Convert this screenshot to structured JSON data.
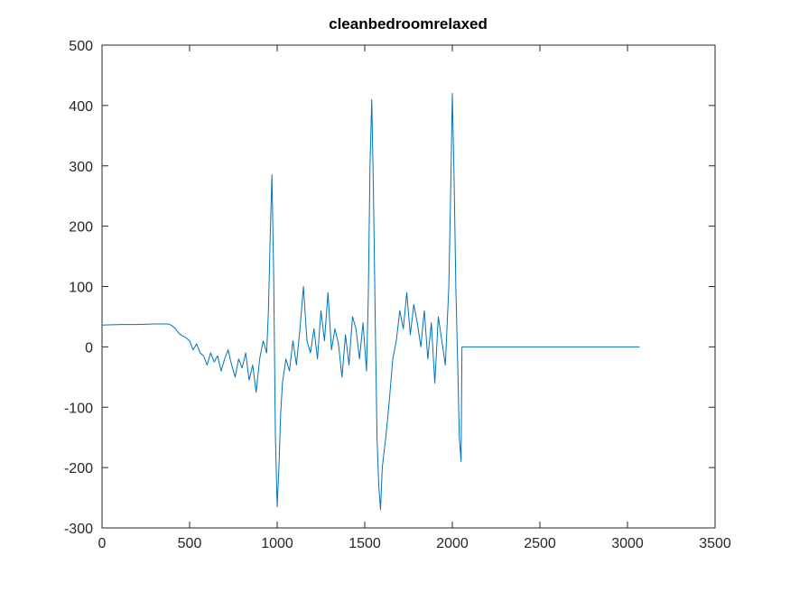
{
  "chart_data": {
    "type": "line",
    "title": "cleanbedroomrelaxed",
    "x": [
      0,
      100,
      200,
      300,
      380,
      400,
      420,
      440,
      460,
      480,
      500,
      520,
      540,
      560,
      580,
      600,
      620,
      640,
      660,
      680,
      700,
      720,
      740,
      760,
      780,
      800,
      820,
      840,
      860,
      880,
      900,
      920,
      940,
      950,
      960,
      970,
      980,
      990,
      1000,
      1010,
      1020,
      1030,
      1050,
      1070,
      1090,
      1110,
      1130,
      1150,
      1170,
      1190,
      1210,
      1230,
      1250,
      1270,
      1290,
      1310,
      1330,
      1350,
      1370,
      1390,
      1410,
      1430,
      1450,
      1470,
      1490,
      1510,
      1520,
      1530,
      1540,
      1550,
      1560,
      1570,
      1580,
      1590,
      1600,
      1620,
      1640,
      1660,
      1680,
      1700,
      1720,
      1740,
      1760,
      1780,
      1800,
      1820,
      1840,
      1860,
      1880,
      1900,
      1920,
      1940,
      1960,
      1980,
      1990,
      2000,
      2010,
      2020,
      2030,
      2040,
      2050,
      2055,
      2500,
      3070
    ],
    "values": [
      36,
      37,
      37,
      38,
      38,
      35,
      30,
      22,
      18,
      15,
      10,
      -5,
      5,
      -10,
      -15,
      -30,
      -10,
      -25,
      -15,
      -40,
      -20,
      -5,
      -30,
      -50,
      -20,
      -35,
      -10,
      -55,
      -30,
      -75,
      -20,
      10,
      -10,
      60,
      180,
      285,
      120,
      -150,
      -265,
      -200,
      -110,
      -60,
      -20,
      -40,
      10,
      -30,
      30,
      100,
      10,
      -10,
      30,
      -20,
      60,
      10,
      90,
      -5,
      30,
      5,
      -50,
      20,
      -30,
      50,
      30,
      -20,
      40,
      -40,
      80,
      300,
      410,
      250,
      40,
      -150,
      -230,
      -270,
      -200,
      -150,
      -90,
      -20,
      10,
      60,
      30,
      90,
      20,
      70,
      40,
      0,
      60,
      -20,
      40,
      -60,
      50,
      10,
      -30,
      100,
      250,
      420,
      280,
      100,
      -20,
      -150,
      -190,
      0,
      0,
      0
    ],
    "color": "#0072BD",
    "xlim": [
      0,
      3500
    ],
    "xticks": [
      0,
      500,
      1000,
      1500,
      2000,
      2500,
      3000,
      3500
    ],
    "ylim": [
      -300,
      500
    ],
    "yticks": [
      -300,
      -200,
      -100,
      0,
      100,
      200,
      300,
      400,
      500
    ],
    "grid": false
  }
}
